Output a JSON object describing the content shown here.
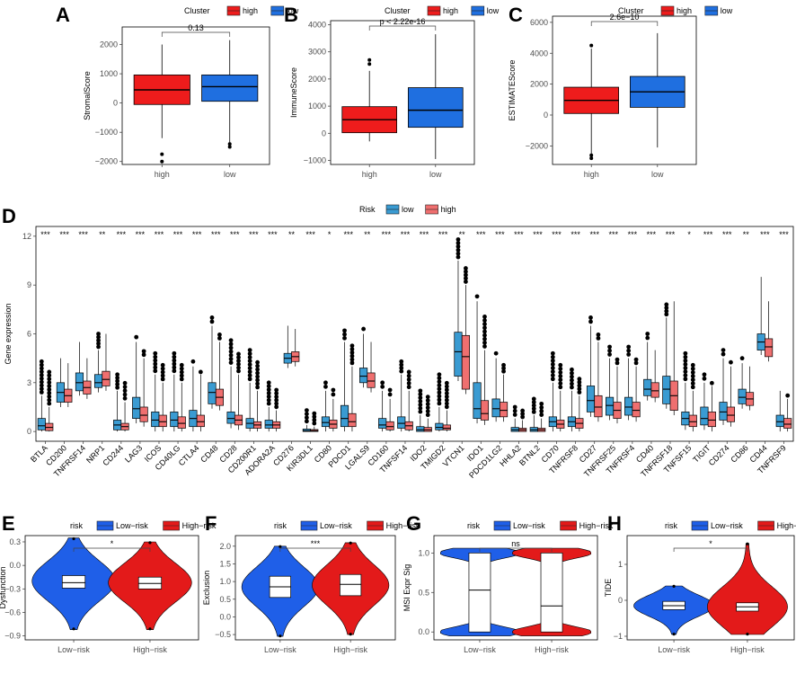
{
  "colors": {
    "high": "#ee1c1c",
    "low": "#1f6fe0",
    "riskLow": "#3a9bd2",
    "riskHigh": "#ef6f6f",
    "lowRisk": "#1f5fe8",
    "highRisk": "#e31a1a"
  },
  "chart_data": [
    {
      "panel": "A",
      "type": "box",
      "legend_title": "Cluster",
      "legend": [
        "high",
        "low"
      ],
      "categories": [
        "high",
        "low"
      ],
      "ylabel": "StromalScore",
      "ylim": [
        -2100,
        2600
      ],
      "yticks": [
        -2000,
        -1000,
        0,
        1000,
        2000
      ],
      "pvalue": "0.13",
      "boxes": [
        {
          "min": -1200,
          "q1": -50,
          "median": 450,
          "q3": 960,
          "max": 2000,
          "outliers": [
            -1750,
            -2000
          ]
        },
        {
          "min": -1350,
          "q1": 60,
          "median": 560,
          "q3": 960,
          "max": 2150,
          "outliers": [
            -1400,
            -1500
          ]
        }
      ]
    },
    {
      "panel": "B",
      "type": "box",
      "legend_title": "Cluster",
      "legend": [
        "high",
        "low"
      ],
      "categories": [
        "high",
        "low"
      ],
      "ylabel": "ImmuneScore",
      "ylim": [
        -1150,
        4150
      ],
      "yticks": [
        -1000,
        0,
        1000,
        2000,
        3000,
        4000
      ],
      "pvalue": "p < 2.22e-16",
      "boxes": [
        {
          "min": -300,
          "q1": 20,
          "median": 500,
          "q3": 980,
          "max": 2300,
          "outliers": [
            2550,
            2700
          ]
        },
        {
          "min": -950,
          "q1": 220,
          "median": 850,
          "q3": 1680,
          "max": 3650,
          "outliers": []
        }
      ]
    },
    {
      "panel": "C",
      "type": "box",
      "legend_title": "Cluster",
      "legend": [
        "high",
        "low"
      ],
      "categories": [
        "high",
        "low"
      ],
      "ylabel": "ESTIMATEScore",
      "ylim": [
        -3200,
        6400
      ],
      "yticks": [
        -2000,
        0,
        2000,
        4000,
        6000
      ],
      "pvalue": "2.6e−10",
      "boxes": [
        {
          "min": -2500,
          "q1": 100,
          "median": 950,
          "q3": 1800,
          "max": 4300,
          "outliers": [
            -2600,
            -2800,
            4500
          ]
        },
        {
          "min": -2100,
          "q1": 500,
          "median": 1500,
          "q3": 2500,
          "max": 5300,
          "outliers": []
        }
      ]
    },
    {
      "panel": "D",
      "type": "box",
      "legend_title": "Risk",
      "legend": [
        "low",
        "high"
      ],
      "ylabel": "Gene expression",
      "ylim": [
        -0.6,
        12.6
      ],
      "yticks": [
        0,
        3,
        6,
        9,
        12
      ],
      "genes": [
        "BTLA",
        "CD200",
        "TNFRSF14",
        "NRP1",
        "CD244",
        "LAG3",
        "ICOS",
        "CD40LG",
        "CTLA4",
        "CD48",
        "CD28",
        "CD200R1",
        "ADORA2A",
        "CD276",
        "KIR3DL1",
        "CD80",
        "PDCD1",
        "LGALS9",
        "CD160",
        "TNFSF14",
        "IDO2",
        "TMIGD2",
        "VTCN1",
        "IDO1",
        "PDCD1LG2",
        "HHLA2",
        "BTNL2",
        "CD70",
        "TNFRSF8",
        "CD27",
        "TNFRSF25",
        "TNFRSF4",
        "CD40",
        "TNFRSF18",
        "TNFSF15",
        "TIGIT",
        "CD274",
        "CD86",
        "CD44",
        "TNFRSF9"
      ],
      "significance": [
        "***",
        "***",
        "***",
        "**",
        "***",
        "***",
        "***",
        "***",
        "***",
        "***",
        "***",
        "***",
        "***",
        "**",
        "***",
        "*",
        "***",
        "**",
        "***",
        "***",
        "***",
        "***",
        "**",
        "***",
        "***",
        "***",
        "***",
        "***",
        "***",
        "***",
        "***",
        "***",
        "***",
        "***",
        "*",
        "***",
        "***",
        "**",
        "***",
        "***"
      ],
      "low_median": [
        0.35,
        2.4,
        3.0,
        3.0,
        0.4,
        1.4,
        0.7,
        0.7,
        0.8,
        2.4,
        0.8,
        0.5,
        0.4,
        4.5,
        0.05,
        0.55,
        0.8,
        3.4,
        0.4,
        0.5,
        0.1,
        0.25,
        4.9,
        1.4,
        1.4,
        0.1,
        0.1,
        0.6,
        0.6,
        1.9,
        1.6,
        1.5,
        2.6,
        2.6,
        0.8,
        0.8,
        1.2,
        2.1,
        5.5,
        0.6
      ],
      "high_median": [
        0.25,
        2.2,
        2.7,
        3.2,
        0.3,
        1.0,
        0.6,
        0.5,
        0.6,
        2.1,
        0.7,
        0.4,
        0.4,
        4.6,
        0.05,
        0.45,
        0.6,
        3.1,
        0.3,
        0.35,
        0.1,
        0.2,
        4.6,
        1.1,
        1.3,
        0.1,
        0.1,
        0.45,
        0.5,
        1.5,
        1.3,
        1.3,
        2.5,
        2.2,
        0.6,
        0.7,
        1.0,
        2.0,
        5.2,
        0.45
      ],
      "low_iqr": [
        [
          0.1,
          0.8
        ],
        [
          1.8,
          3.0
        ],
        [
          2.5,
          3.6
        ],
        [
          2.7,
          3.5
        ],
        [
          0.1,
          0.7
        ],
        [
          0.8,
          2.1
        ],
        [
          0.3,
          1.2
        ],
        [
          0.3,
          1.2
        ],
        [
          0.3,
          1.3
        ],
        [
          1.7,
          3.0
        ],
        [
          0.5,
          1.2
        ],
        [
          0.2,
          0.8
        ],
        [
          0.2,
          0.7
        ],
        [
          4.2,
          4.8
        ],
        [
          0.0,
          0.15
        ],
        [
          0.3,
          0.9
        ],
        [
          0.3,
          1.6
        ],
        [
          3.0,
          3.9
        ],
        [
          0.2,
          0.8
        ],
        [
          0.2,
          0.9
        ],
        [
          0.0,
          0.3
        ],
        [
          0.1,
          0.5
        ],
        [
          3.4,
          6.1
        ],
        [
          0.8,
          3.0
        ],
        [
          0.9,
          2.0
        ],
        [
          0.0,
          0.25
        ],
        [
          0.0,
          0.25
        ],
        [
          0.3,
          0.9
        ],
        [
          0.3,
          0.9
        ],
        [
          1.2,
          2.8
        ],
        [
          1.0,
          2.1
        ],
        [
          1.0,
          2.1
        ],
        [
          2.2,
          3.2
        ],
        [
          1.7,
          3.4
        ],
        [
          0.4,
          1.2
        ],
        [
          0.4,
          1.5
        ],
        [
          0.7,
          1.8
        ],
        [
          1.7,
          2.6
        ],
        [
          5.0,
          6.0
        ],
        [
          0.3,
          1.0
        ]
      ],
      "high_iqr": [
        [
          0.05,
          0.5
        ],
        [
          1.8,
          2.6
        ],
        [
          2.3,
          3.1
        ],
        [
          2.8,
          3.7
        ],
        [
          0.1,
          0.5
        ],
        [
          0.6,
          1.5
        ],
        [
          0.3,
          1.0
        ],
        [
          0.2,
          0.9
        ],
        [
          0.3,
          1.0
        ],
        [
          1.6,
          2.6
        ],
        [
          0.4,
          1.0
        ],
        [
          0.2,
          0.6
        ],
        [
          0.2,
          0.6
        ],
        [
          4.3,
          4.9
        ],
        [
          0.0,
          0.12
        ],
        [
          0.2,
          0.7
        ],
        [
          0.3,
          1.1
        ],
        [
          2.7,
          3.6
        ],
        [
          0.1,
          0.6
        ],
        [
          0.1,
          0.6
        ],
        [
          0.0,
          0.25
        ],
        [
          0.1,
          0.4
        ],
        [
          2.6,
          5.9
        ],
        [
          0.7,
          1.9
        ],
        [
          0.9,
          1.8
        ],
        [
          0.0,
          0.2
        ],
        [
          0.0,
          0.2
        ],
        [
          0.2,
          0.7
        ],
        [
          0.2,
          0.8
        ],
        [
          0.9,
          2.2
        ],
        [
          0.8,
          1.8
        ],
        [
          0.9,
          1.8
        ],
        [
          2.1,
          3.0
        ],
        [
          1.3,
          3.1
        ],
        [
          0.3,
          1.0
        ],
        [
          0.3,
          1.2
        ],
        [
          0.6,
          1.5
        ],
        [
          1.6,
          2.4
        ],
        [
          4.6,
          5.7
        ],
        [
          0.2,
          0.8
        ]
      ],
      "low_max": [
        2.2,
        4.5,
        5.5,
        5.0,
        2.5,
        5.5,
        3.5,
        3.5,
        4.0,
        6.5,
        4.0,
        3.0,
        1.5,
        6.5,
        0.4,
        2.5,
        5.5,
        6.0,
        2.5,
        3.5,
        1.0,
        1.5,
        10.5,
        8.0,
        4.5,
        0.8,
        1.0,
        3.0,
        2.5,
        6.5,
        4.5,
        4.5,
        5.5,
        7.0,
        3.0,
        3.0,
        4.5,
        4.2,
        9.5,
        2.5
      ],
      "high_max": [
        1.5,
        4.2,
        4.5,
        6.0,
        1.8,
        4.5,
        3.0,
        3.0,
        3.5,
        5.5,
        3.5,
        2.5,
        1.3,
        6.3,
        0.3,
        2.0,
        4.0,
        5.5,
        2.0,
        2.5,
        0.8,
        1.3,
        9.0,
        5.0,
        3.5,
        0.7,
        0.8,
        2.5,
        2.2,
        5.5,
        4.0,
        4.0,
        5.0,
        8.0,
        2.5,
        2.8,
        4.0,
        4.0,
        8.0,
        2.0
      ],
      "top_outliers": [
        4.3,
        4.3,
        4.8,
        6.0,
        3.5,
        5.8,
        4.8,
        4.8,
        4.3,
        7.0,
        5.6,
        5.0,
        3.0,
        6.6,
        1.3,
        3.0,
        6.2,
        6.3,
        3.0,
        4.3,
        2.5,
        3.5,
        11.8,
        8.3,
        4.8,
        1.5,
        2.0,
        4.8,
        3.8,
        7.0,
        5.2,
        5.2,
        6.0,
        7.8,
        4.8,
        3.5,
        5.0,
        4.5,
        9.4,
        2.6
      ]
    },
    {
      "panel": "E",
      "type": "violin",
      "legend_title": "risk",
      "legend": [
        "Low−risk",
        "High−risk"
      ],
      "categories": [
        "Low−risk",
        "High−risk"
      ],
      "ylabel": "Dysfunction",
      "ylim": [
        -0.95,
        0.38
      ],
      "yticks": [
        -0.9,
        -0.6,
        -0.3,
        0.0,
        0.3
      ],
      "tick_labels": [
        "−0.9",
        "−0.6",
        "−0.3",
        "0.0",
        "0.3"
      ],
      "pvalue": "*",
      "violins": [
        {
          "min": -0.82,
          "max": 0.35,
          "q1": -0.29,
          "median": -0.22,
          "q3": -0.13,
          "peak": -0.2
        },
        {
          "min": -0.82,
          "max": 0.3,
          "q1": -0.3,
          "median": -0.23,
          "q3": -0.15,
          "peak": -0.22
        }
      ]
    },
    {
      "panel": "F",
      "type": "violin",
      "legend_title": "risk",
      "legend": [
        "Low−risk",
        "High−risk"
      ],
      "categories": [
        "Low−risk",
        "High−risk"
      ],
      "ylabel": "Exclusion",
      "ylim": [
        -0.65,
        2.3
      ],
      "yticks": [
        -0.5,
        0.0,
        0.5,
        1.0,
        1.5,
        2.0
      ],
      "tick_labels": [
        "−0.5",
        "0.0",
        "0.5",
        "1.0",
        "1.5",
        "2.0"
      ],
      "pvalue": "***",
      "violins": [
        {
          "min": -0.55,
          "max": 2.0,
          "q1": 0.55,
          "median": 0.85,
          "q3": 1.15,
          "peak": 0.85
        },
        {
          "min": -0.5,
          "max": 2.1,
          "q1": 0.6,
          "median": 0.92,
          "q3": 1.2,
          "peak": 0.9
        }
      ]
    },
    {
      "panel": "G",
      "type": "violin",
      "legend_title": "risk",
      "legend": [
        "Low−risk",
        "High−risk"
      ],
      "categories": [
        "Low−risk",
        "High−risk"
      ],
      "ylabel": "MSI Expr Sig",
      "ylim": [
        -0.1,
        1.22
      ],
      "yticks": [
        0.0,
        0.5,
        1.0
      ],
      "tick_labels": [
        "0.0",
        "0.5",
        "1.0"
      ],
      "pvalue": "ns",
      "violins": [
        {
          "min": -0.05,
          "max": 1.06,
          "q1": 0.0,
          "median": 0.53,
          "q3": 1.0,
          "bimodal": true
        },
        {
          "min": -0.05,
          "max": 1.06,
          "q1": 0.0,
          "median": 0.33,
          "q3": 1.0,
          "bimodal": true
        }
      ]
    },
    {
      "panel": "H",
      "type": "violin",
      "legend_title": "risk",
      "legend": [
        "Low−risk",
        "High−risk"
      ],
      "categories": [
        "Low−risk",
        "High−risk"
      ],
      "ylabel": "TIDE",
      "ylim": [
        -1.1,
        1.8
      ],
      "yticks": [
        -1,
        0,
        1
      ],
      "tick_labels": [
        "−1",
        "0",
        "1"
      ],
      "pvalue": "*",
      "violins": [
        {
          "min": -0.95,
          "max": 0.4,
          "q1": -0.26,
          "median": -0.15,
          "q3": -0.03,
          "peak": -0.15
        },
        {
          "min": -0.95,
          "max": 1.58,
          "q1": -0.3,
          "median": -0.18,
          "q3": -0.07,
          "peak": -0.18
        }
      ]
    }
  ]
}
